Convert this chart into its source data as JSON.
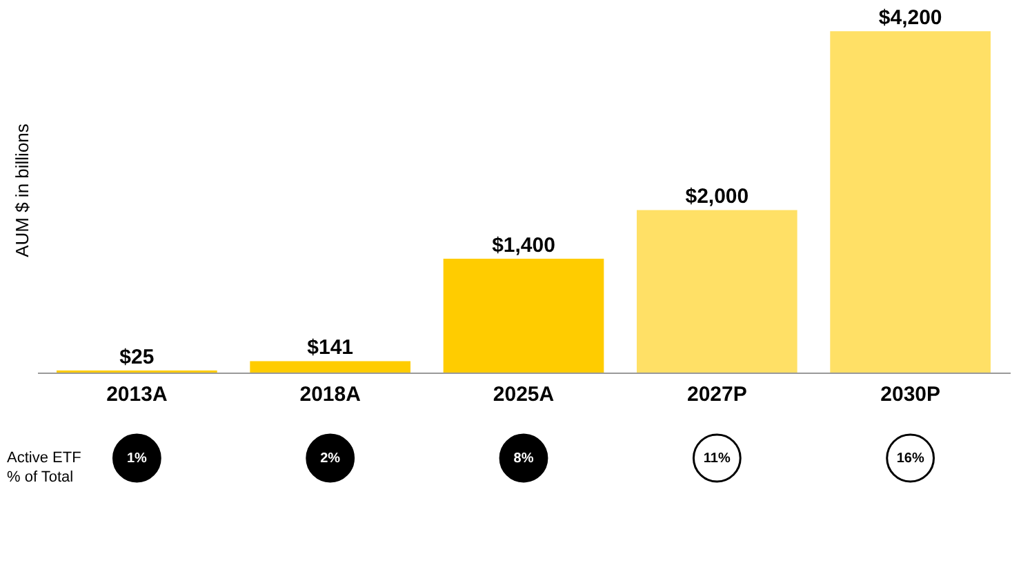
{
  "chart_data": {
    "type": "bar",
    "ylabel": "AUM $ in billions",
    "categories": [
      "2013A",
      "2018A",
      "2025A",
      "2027P",
      "2030P"
    ],
    "values": [
      25,
      141,
      1400,
      2000,
      4200
    ],
    "colors": [
      "#ffcc00",
      "#ffcc00",
      "#ffcc00",
      "#ffe066",
      "#ffe066"
    ],
    "value_labels": [
      "$25",
      "$141",
      "$1,400",
      "$2,000",
      "$4,200"
    ],
    "tick_labels": "x",
    "grid": false,
    "annotations": [
      "Active ETF\n% of Total",
      "1%",
      "2%",
      "8%",
      "11%",
      "16%"
    ]
  }
}
